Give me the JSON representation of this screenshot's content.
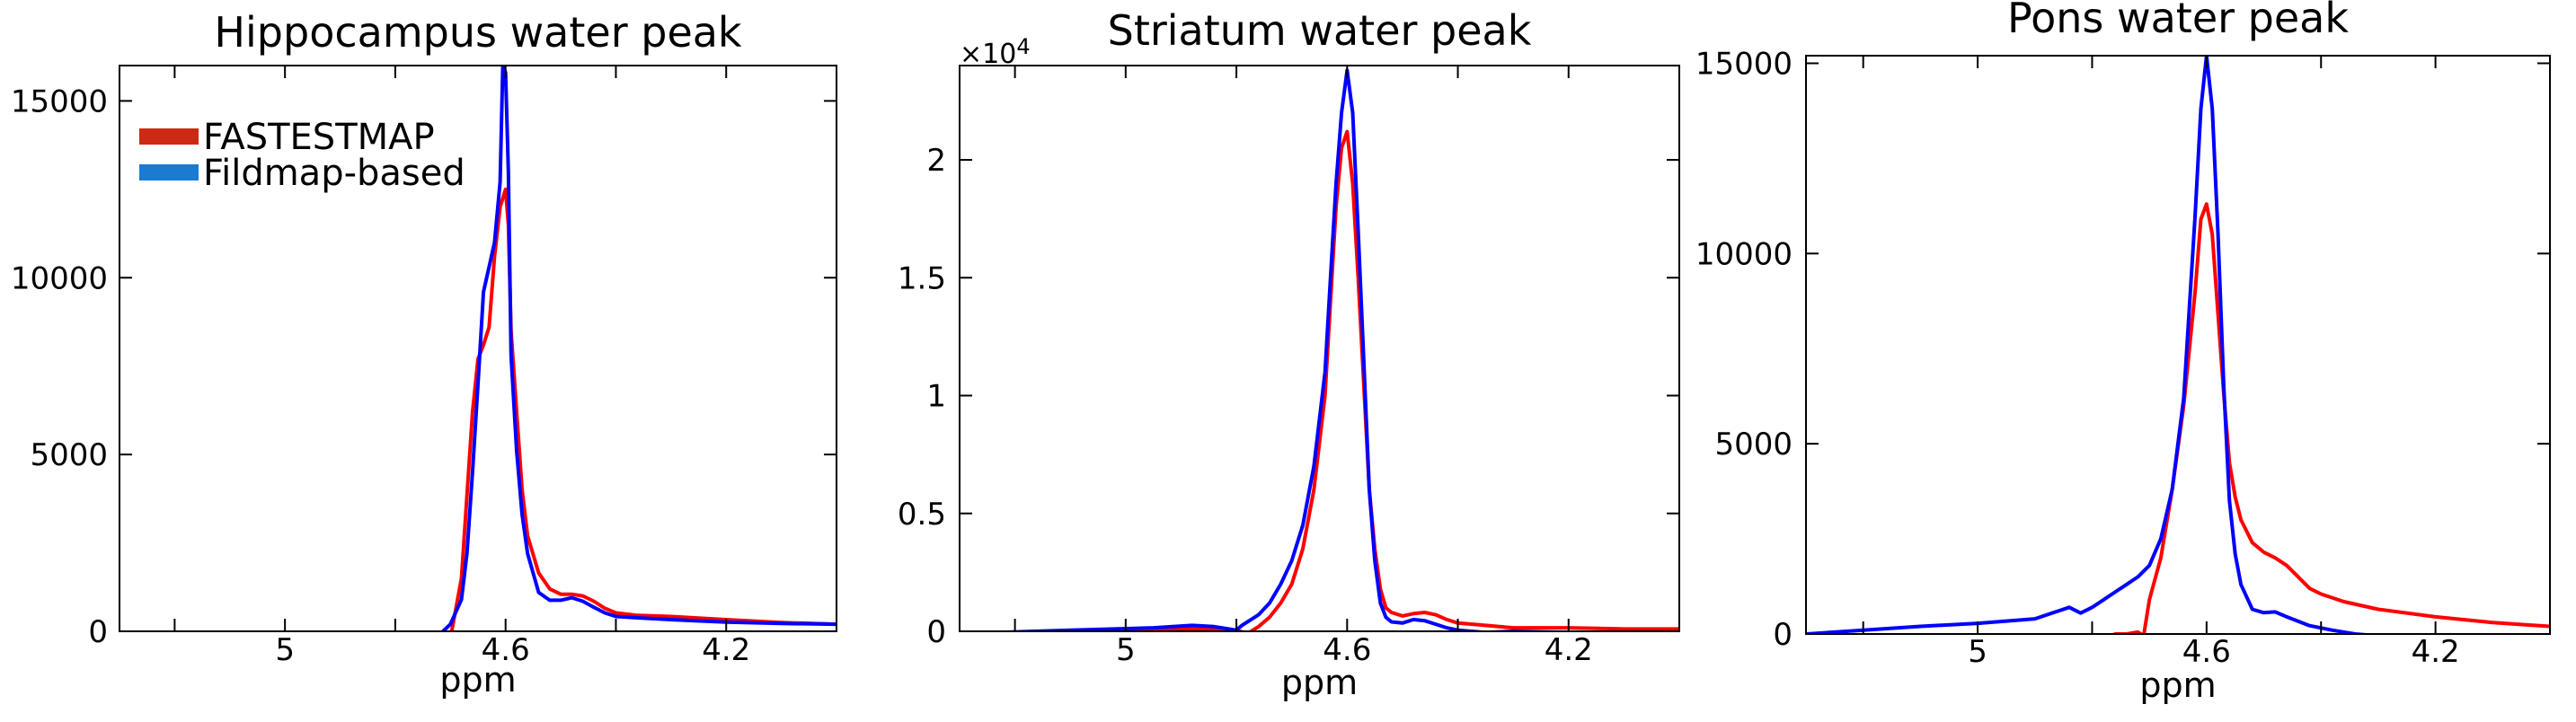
{
  "chart_data": [
    {
      "type": "line",
      "title": "Hippocampus water peak",
      "xlabel": "ppm",
      "ylabel": "",
      "xlim": [
        5.3,
        4.0
      ],
      "ylim": [
        0,
        16000
      ],
      "xticks": [
        5,
        4.6,
        4.2
      ],
      "xtick_labels": [
        "5",
        "4.6",
        "4.2"
      ],
      "yticks": [
        0,
        5000,
        10000,
        15000
      ],
      "ytick_labels": [
        "0",
        "5000",
        "10000",
        "15000"
      ],
      "legend": {
        "position": "top-left",
        "entries": [
          {
            "label": "FASTESTMAP",
            "color": "#cc2a12"
          },
          {
            "label": "Fildmap-based",
            "color": "#1b7bd1"
          }
        ]
      },
      "series": [
        {
          "name": "FASTESTMAP",
          "color": "#ff0000",
          "x": [
            4.7,
            4.68,
            4.66,
            4.65,
            4.64,
            4.63,
            4.62,
            4.61,
            4.6,
            4.595,
            4.59,
            4.58,
            4.57,
            4.56,
            4.54,
            4.52,
            4.5,
            4.48,
            4.46,
            4.44,
            4.42,
            4.4,
            4.36,
            4.3,
            4.2,
            4.1,
            4.0
          ],
          "y": [
            -200,
            1500,
            6200,
            7700,
            8100,
            8600,
            10600,
            12000,
            12500,
            11500,
            8500,
            6200,
            4000,
            2700,
            1650,
            1200,
            1050,
            1050,
            1000,
            850,
            650,
            520,
            450,
            420,
            330,
            250,
            200
          ]
        },
        {
          "name": "Fildmap-based",
          "color": "#0000ff",
          "x": [
            4.72,
            4.7,
            4.68,
            4.67,
            4.66,
            4.65,
            4.64,
            4.63,
            4.62,
            4.61,
            4.605,
            4.6,
            4.595,
            4.59,
            4.58,
            4.57,
            4.56,
            4.54,
            4.52,
            4.5,
            4.48,
            4.46,
            4.44,
            4.42,
            4.4,
            4.36,
            4.3,
            4.2,
            4.1,
            4.0
          ],
          "y": [
            -100,
            200,
            900,
            2200,
            4500,
            7000,
            9600,
            10300,
            11000,
            12700,
            16000,
            15800,
            13000,
            7800,
            5100,
            3300,
            2200,
            1100,
            880,
            880,
            950,
            850,
            680,
            520,
            420,
            380,
            330,
            260,
            220,
            200
          ]
        }
      ]
    },
    {
      "type": "line",
      "title": "Striatum water peak",
      "xlabel": "ppm",
      "ylabel": "",
      "multiplier_label": "×10",
      "multiplier_exp": "4",
      "xlim": [
        5.3,
        4.0
      ],
      "ylim": [
        0,
        2.4
      ],
      "xticks": [
        5,
        4.6,
        4.2
      ],
      "xtick_labels": [
        "5",
        "4.6",
        "4.2"
      ],
      "yticks": [
        0,
        0.5,
        1,
        1.5,
        2
      ],
      "ytick_labels": [
        "0",
        "0.5",
        "1",
        "1.5",
        "2"
      ],
      "series": [
        {
          "name": "FASTESTMAP",
          "color": "#ff0000",
          "x": [
            5.3,
            5.1,
            4.95,
            4.85,
            4.8,
            4.78,
            4.76,
            4.74,
            4.72,
            4.7,
            4.68,
            4.66,
            4.64,
            4.63,
            4.62,
            4.61,
            4.6,
            4.59,
            4.58,
            4.57,
            4.56,
            4.55,
            4.54,
            4.53,
            4.52,
            4.5,
            4.48,
            4.46,
            4.44,
            4.42,
            4.4,
            4.35,
            4.3,
            4.2,
            4.1,
            4.0
          ],
          "y": [
            -0.01,
            0.0,
            0.01,
            0.01,
            0.005,
            -0.01,
            0.02,
            0.06,
            0.12,
            0.2,
            0.35,
            0.6,
            1.0,
            1.4,
            1.8,
            2.05,
            2.12,
            1.9,
            1.5,
            1.05,
            0.6,
            0.35,
            0.18,
            0.1,
            0.08,
            0.065,
            0.075,
            0.08,
            0.07,
            0.05,
            0.035,
            0.025,
            0.015,
            0.015,
            0.01,
            0.01
          ]
        },
        {
          "name": "Fildmap-based",
          "color": "#0000ff",
          "x": [
            5.3,
            5.1,
            4.95,
            4.88,
            4.84,
            4.8,
            4.79,
            4.76,
            4.74,
            4.72,
            4.7,
            4.68,
            4.66,
            4.64,
            4.63,
            4.62,
            4.61,
            4.6,
            4.59,
            4.58,
            4.57,
            4.56,
            4.55,
            4.54,
            4.53,
            4.52,
            4.5,
            4.48,
            4.46,
            4.44,
            4.42,
            4.4,
            4.35,
            4.3,
            4.2,
            4.1,
            4.0
          ],
          "y": [
            -0.01,
            0.005,
            0.015,
            0.025,
            0.02,
            0.005,
            0.025,
            0.07,
            0.12,
            0.2,
            0.3,
            0.45,
            0.7,
            1.1,
            1.5,
            1.9,
            2.2,
            2.38,
            2.2,
            1.7,
            1.15,
            0.6,
            0.3,
            0.12,
            0.06,
            0.04,
            0.035,
            0.05,
            0.045,
            0.03,
            0.015,
            0.005,
            -0.005,
            0.0,
            -0.005,
            -0.005,
            -0.005
          ]
        }
      ]
    },
    {
      "type": "line",
      "title": "Pons water peak",
      "xlabel": "ppm",
      "ylabel": "",
      "xlim": [
        5.3,
        4.0
      ],
      "ylim": [
        0,
        15200
      ],
      "xticks": [
        5,
        4.6,
        4.2
      ],
      "xtick_labels": [
        "5",
        "4.6",
        "4.2"
      ],
      "yticks": [
        0,
        5000,
        10000,
        15000
      ],
      "ytick_labels": [
        "0",
        "5000",
        "10000",
        "15000"
      ],
      "series": [
        {
          "name": "FASTESTMAP",
          "color": "#ff0000",
          "x": [
            4.78,
            4.76,
            4.74,
            4.72,
            4.71,
            4.7,
            4.68,
            4.66,
            4.64,
            4.62,
            4.61,
            4.6,
            4.59,
            4.58,
            4.57,
            4.56,
            4.55,
            4.54,
            4.52,
            4.5,
            4.48,
            4.46,
            4.44,
            4.42,
            4.4,
            4.36,
            4.3,
            4.2,
            4.1,
            4.0
          ],
          "y": [
            -200,
            0,
            0,
            50,
            -50,
            900,
            2000,
            3800,
            6000,
            9000,
            10900,
            11300,
            10500,
            8400,
            6300,
            4500,
            3600,
            3000,
            2400,
            2150,
            2000,
            1800,
            1500,
            1200,
            1050,
            850,
            650,
            450,
            300,
            200
          ]
        },
        {
          "name": "Fildmap-based",
          "color": "#0000ff",
          "x": [
            5.3,
            5.2,
            5.1,
            5.0,
            4.9,
            4.86,
            4.84,
            4.82,
            4.8,
            4.78,
            4.76,
            4.74,
            4.72,
            4.7,
            4.68,
            4.66,
            4.64,
            4.62,
            4.61,
            4.6,
            4.59,
            4.58,
            4.57,
            4.56,
            4.55,
            4.54,
            4.52,
            4.5,
            4.48,
            4.46,
            4.42,
            4.38,
            4.34,
            4.3,
            4.2,
            4.1,
            4.0
          ],
          "y": [
            0,
            100,
            200,
            280,
            400,
            600,
            700,
            550,
            700,
            900,
            1100,
            1300,
            1500,
            1800,
            2500,
            3800,
            6200,
            11000,
            13800,
            15200,
            13800,
            10500,
            6500,
            3500,
            2100,
            1300,
            650,
            560,
            580,
            450,
            220,
            100,
            0,
            -50,
            -100,
            -100,
            -100
          ]
        }
      ]
    }
  ]
}
